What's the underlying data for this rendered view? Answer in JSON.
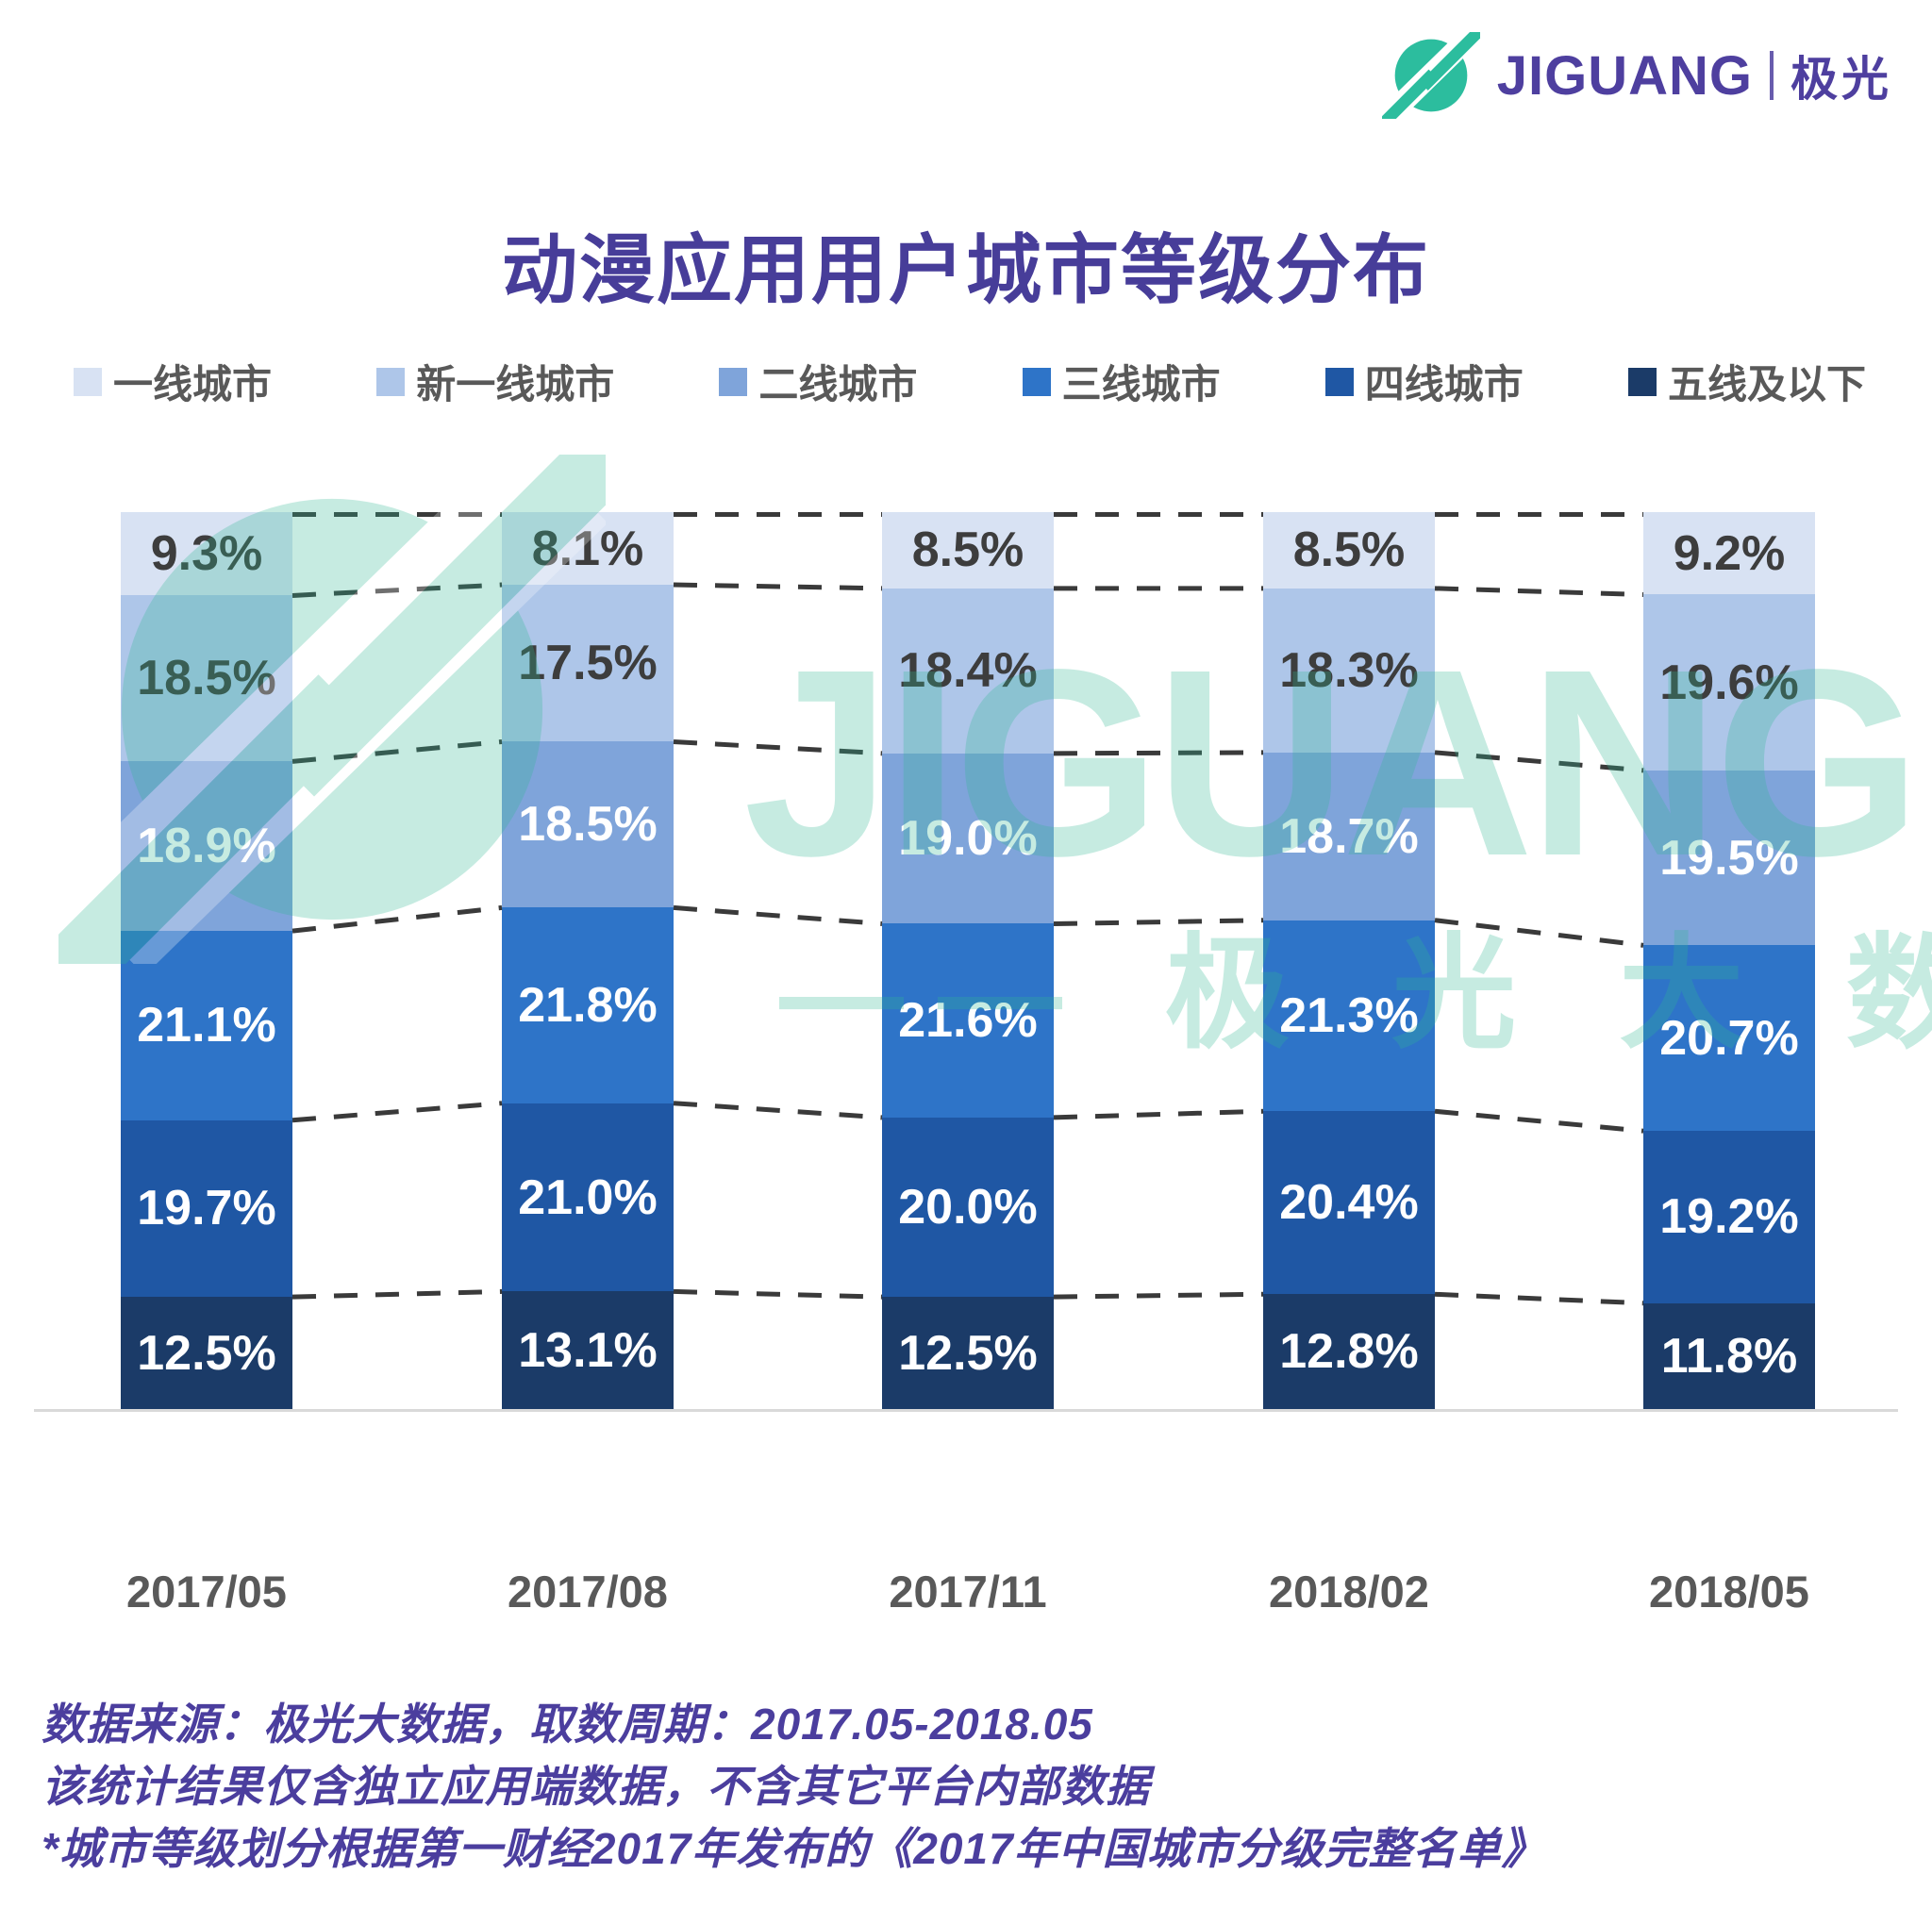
{
  "header": {
    "brand_en": "JIGUANG",
    "brand_cn": "极光",
    "logo_color": "#2cbd9e",
    "brand_text_color": "#4e3f9f"
  },
  "title": "动漫应用用户城市等级分布",
  "chart_data": {
    "type": "bar",
    "stacked": true,
    "orientation": "vertical",
    "value_suffix": "%",
    "ylim": [
      0,
      100
    ],
    "grid": "dashed-connectors-between-bars",
    "legend_position": "top",
    "categories": [
      "2017/05",
      "2017/08",
      "2017/11",
      "2018/02",
      "2018/05"
    ],
    "series": [
      {
        "name": "一线城市",
        "color": "#d8e2f3",
        "label_color": "#3d3d3d",
        "values": [
          9.3,
          8.1,
          8.5,
          8.5,
          9.2
        ]
      },
      {
        "name": "新一线城市",
        "color": "#aec6e9",
        "label_color": "#3d3d3d",
        "values": [
          18.5,
          17.5,
          18.4,
          18.3,
          19.6
        ]
      },
      {
        "name": "二线城市",
        "color": "#7fa4da",
        "label_color": "#ffffff",
        "values": [
          18.9,
          18.5,
          19.0,
          18.7,
          19.5
        ]
      },
      {
        "name": "三线城市",
        "color": "#2e74c8",
        "label_color": "#ffffff",
        "values": [
          21.1,
          21.8,
          21.6,
          21.3,
          20.7
        ]
      },
      {
        "name": "四线城市",
        "color": "#1f57a4",
        "label_color": "#ffffff",
        "values": [
          19.7,
          21.0,
          20.0,
          20.4,
          19.2
        ]
      },
      {
        "name": "五线及以下",
        "color": "#1b3b68",
        "label_color": "#ffffff",
        "values": [
          12.5,
          13.1,
          12.5,
          12.8,
          11.8
        ]
      }
    ],
    "connector_color": "#3a3a3a",
    "axis_line_color": "#d9d9d9",
    "category_label_color": "#595959"
  },
  "watermark": {
    "logo_text": "JIGUANG",
    "sub_text": "—— 极 光 大 数 据",
    "color": "#2fb893"
  },
  "footer": {
    "lines": [
      "数据来源：极光大数据，取数周期：2017.05-2018.05",
      "该统计结果仅含独立应用端数据，不含其它平台内部数据",
      "*城市等级划分根据第一财经2017年发布的《2017年中国城市分级完整名单》"
    ]
  }
}
